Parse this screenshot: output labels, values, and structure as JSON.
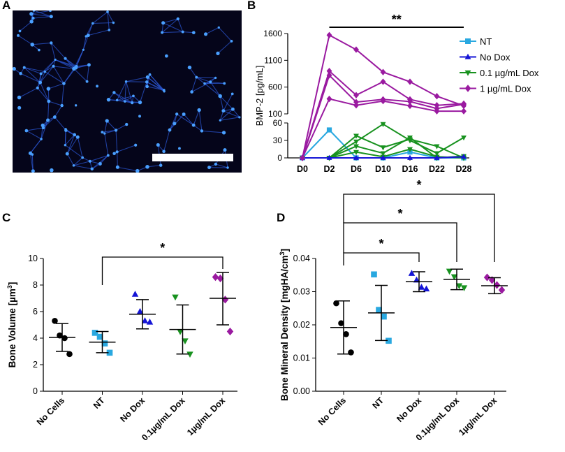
{
  "panels": {
    "a": "A",
    "b": "B",
    "c": "C",
    "d": "D"
  },
  "colors": {
    "nt": "#29a8e0",
    "nodox": "#1515d6",
    "dox01": "#18921f",
    "dox1": "#9a1aa0",
    "micro_bg": "#05051a",
    "micro_cell": "#2b57d6",
    "scale_bar": "#ffffff",
    "axis": "#000000"
  },
  "chart_data": [
    {
      "id": "B",
      "type": "line",
      "title": "",
      "ylabel": "BMP-2 [pg/mL]",
      "x": [
        "D0",
        "D2",
        "D6",
        "D10",
        "D16",
        "D22",
        "D28"
      ],
      "y_upper": {
        "ylim": [
          100,
          1600
        ],
        "ticks": [
          "100",
          "600",
          "1100",
          "1600"
        ]
      },
      "y_lower": {
        "ylim": [
          0,
          60
        ],
        "ticks": [
          "0",
          "30",
          "60"
        ]
      },
      "legend": [
        "NT",
        "No Dox",
        "0.1 µg/mL Dox",
        "1 µg/mL Dox"
      ],
      "legend_position": "right",
      "significance": "**",
      "series": [
        {
          "name": "NT",
          "values": [
            [
              0,
              48,
              0,
              0,
              10,
              0,
              0
            ]
          ]
        },
        {
          "name": "No Dox",
          "values": [
            [
              0,
              0,
              0,
              0,
              0,
              0,
              2
            ]
          ]
        },
        {
          "name": "0.1 µg/mL Dox",
          "values": [
            [
              0,
              0,
              38,
              18,
              32,
              20,
              0
            ],
            [
              0,
              0,
              28,
              58,
              30,
              8,
              35
            ],
            [
              0,
              0,
              20,
              8,
              35,
              0,
              3
            ],
            [
              0,
              0,
              10,
              2,
              15,
              2,
              0
            ]
          ]
        },
        {
          "name": "1 µg/mL Dox",
          "values": [
            [
              0,
              1570,
              1300,
              880,
              700,
              430,
              250
            ],
            [
              0,
              900,
              450,
              700,
              370,
              260,
              290
            ],
            [
              0,
              820,
              320,
              370,
              330,
              200,
              280
            ],
            [
              0,
              380,
              260,
              340,
              250,
              150,
              150
            ]
          ]
        }
      ]
    },
    {
      "id": "C",
      "type": "scatter",
      "title": "",
      "ylabel": "Bone Volume [µm³]",
      "ylabel_main": "Bone Volume [µm",
      "ylabel_sup": "3",
      "ylabel_end": "]",
      "ylim": [
        0,
        10
      ],
      "yticks": [
        "0",
        "2",
        "4",
        "6",
        "8",
        "10"
      ],
      "categories": [
        "No Cells",
        "NT",
        "No Dox",
        "0.1µg/mL Dox",
        "1µg/mL Dox"
      ],
      "significance": [
        {
          "from": "NT",
          "to": "1µg/mL Dox",
          "label": "*"
        }
      ],
      "series": [
        {
          "name": "No Cells",
          "marker": "circle",
          "values": [
            5.3,
            4.2,
            4.0,
            2.8
          ],
          "mean": 4.05,
          "sd_low": 3.0,
          "sd_high": 5.1
        },
        {
          "name": "NT",
          "marker": "square",
          "values": [
            4.4,
            4.1,
            3.6,
            2.9
          ],
          "mean": 3.7,
          "sd_low": 2.9,
          "sd_high": 4.5
        },
        {
          "name": "No Dox",
          "marker": "triangle-up",
          "values": [
            7.3,
            6.0,
            5.3,
            5.2
          ],
          "mean": 5.8,
          "sd_low": 4.7,
          "sd_high": 6.9
        },
        {
          "name": "0.1µg/mL Dox",
          "marker": "triangle-down",
          "values": [
            7.1,
            4.5,
            3.8,
            2.8
          ],
          "mean": 4.65,
          "sd_low": 2.8,
          "sd_high": 6.5
        },
        {
          "name": "1µg/mL Dox",
          "marker": "diamond",
          "values": [
            8.6,
            8.5,
            6.9,
            4.5
          ],
          "mean": 7.0,
          "sd_low": 5.0,
          "sd_high": 8.95
        }
      ]
    },
    {
      "id": "D",
      "type": "scatter",
      "title": "",
      "ylabel": "Bone Mineral Density [mgHA/cm³]",
      "ylabel_main": "Bone Mineral Density [mgHA/cm",
      "ylabel_sup": "3",
      "ylabel_end": "]",
      "ylim": [
        0,
        0.04
      ],
      "yticks": [
        "0.00",
        "0.01",
        "0.02",
        "0.03",
        "0.04"
      ],
      "categories": [
        "No Cells",
        "NT",
        "No Dox",
        "0.1µg/mL Dox",
        "1µg/mL Dox"
      ],
      "significance": [
        {
          "from": "No Cells",
          "to": "No Dox",
          "label": "*"
        },
        {
          "from": "No Cells",
          "to": "0.1µg/mL Dox",
          "label": "*"
        },
        {
          "from": "No Cells",
          "to": "1µg/mL Dox",
          "label": "*"
        }
      ],
      "series": [
        {
          "name": "No Cells",
          "marker": "circle",
          "values": [
            0.0265,
            0.0205,
            0.0172,
            0.0117
          ],
          "mean": 0.0192,
          "sd_low": 0.0112,
          "sd_high": 0.0272
        },
        {
          "name": "NT",
          "marker": "square",
          "values": [
            0.0352,
            0.0245,
            0.0225,
            0.0152
          ],
          "mean": 0.0236,
          "sd_low": 0.0153,
          "sd_high": 0.0319
        },
        {
          "name": "No Dox",
          "marker": "triangle-up",
          "values": [
            0.0355,
            0.0335,
            0.0313,
            0.0308
          ],
          "mean": 0.033,
          "sd_low": 0.03,
          "sd_high": 0.036
        },
        {
          "name": "0.1µg/mL Dox",
          "marker": "triangle-down",
          "values": [
            0.0362,
            0.0345,
            0.0318,
            0.0312
          ],
          "mean": 0.0337,
          "sd_low": 0.0306,
          "sd_high": 0.0368
        },
        {
          "name": "1µg/mL Dox",
          "marker": "diamond",
          "values": [
            0.0343,
            0.0335,
            0.032,
            0.0305
          ],
          "mean": 0.0318,
          "sd_low": 0.0294,
          "sd_high": 0.0342
        }
      ]
    }
  ]
}
